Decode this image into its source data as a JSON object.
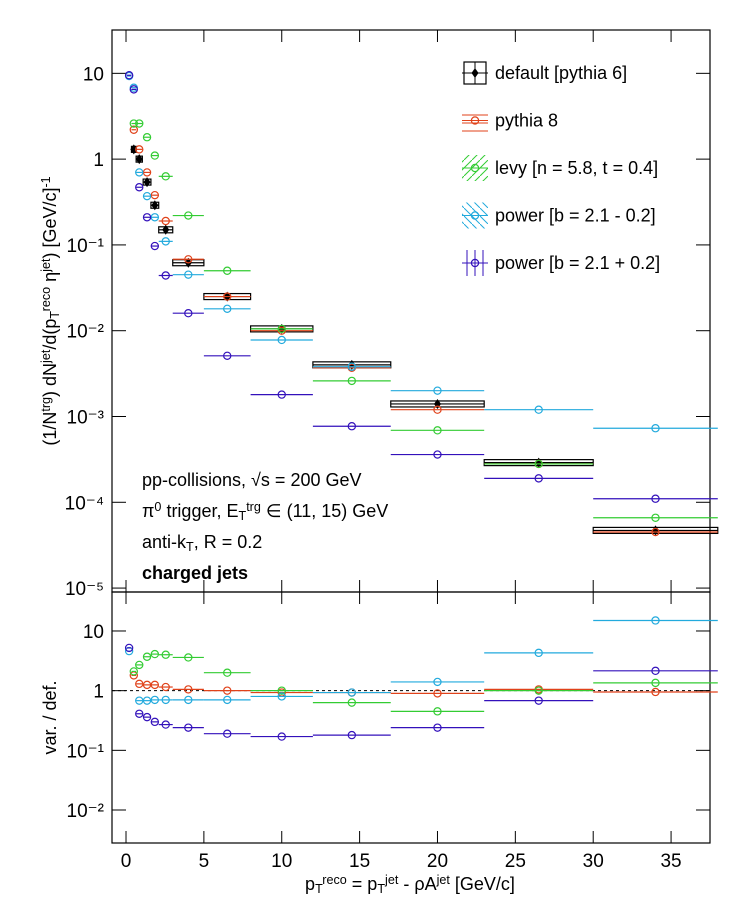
{
  "chart_data": [
    {
      "type": "scatter",
      "log_y": true,
      "ylabel": [
        {
          "t": "(1/N"
        },
        {
          "t": "trg",
          "pos": "sup"
        },
        {
          "t": ") dN"
        },
        {
          "t": "jet",
          "pos": "sup"
        },
        {
          "t": "/d(p"
        },
        {
          "t": "T",
          "pos": "sub"
        },
        {
          "t": "reco",
          "pos": "sup"
        },
        {
          "t": " η"
        },
        {
          "t": "jet",
          "pos": "sup"
        },
        {
          "t": ") [GeV/c]"
        },
        {
          "t": "-1",
          "pos": "sup"
        }
      ],
      "ylim": [
        9e-06,
        32
      ],
      "yticks": [
        {
          "value": 1e-05,
          "label": "10⁻⁵"
        },
        {
          "value": 0.0001,
          "label": "10⁻⁴"
        },
        {
          "value": 0.001,
          "label": "10⁻³"
        },
        {
          "value": 0.01,
          "label": "10⁻²"
        },
        {
          "value": 0.1,
          "label": "10⁻¹"
        },
        1,
        10
      ],
      "x": [
        0.2,
        0.5,
        0.85,
        1.35,
        1.85,
        2.55,
        4,
        6.5,
        10,
        14.5,
        20,
        26.5,
        34
      ],
      "xerr": [
        0.15,
        0.15,
        0.2,
        0.25,
        0.25,
        0.45,
        1,
        1.5,
        2,
        2.5,
        3,
        3.5,
        4
      ],
      "legend": "top-right",
      "series": [
        {
          "name": "default [pythia 6]",
          "color": "#000000",
          "marker": "diamond",
          "box": "outline",
          "values": [
            null,
            1.3,
            1.0,
            0.54,
            0.29,
            0.15,
            0.062,
            0.025,
            0.0105,
            0.004,
            0.0014,
            0.00029,
            4.7e-05
          ]
        },
        {
          "name": "pythia 8",
          "color": "#e0421a",
          "marker": "circle",
          "hatch": "horizontal",
          "values": [
            null,
            2.2,
            1.3,
            0.7,
            0.38,
            0.19,
            0.068,
            0.025,
            0.01,
            0.0037,
            0.0012,
            0.00028,
            4.5e-05
          ]
        },
        {
          "name": "levy [n = 5.8, t = 0.4]",
          "color": "#33cc33",
          "marker": "circle",
          "hatch": "diagonal-up",
          "values": [
            null,
            2.6,
            2.6,
            1.8,
            1.1,
            0.63,
            0.22,
            0.05,
            0.0105,
            0.0026,
            0.00069,
            0.00028,
            6.6e-05
          ]
        },
        {
          "name": "power [b = 2.1 - 0.2]",
          "color": "#22aadd",
          "marker": "circle",
          "hatch": "diagonal-down",
          "values": [
            9.3,
            6.8,
            0.7,
            0.37,
            0.21,
            0.11,
            0.045,
            0.018,
            0.0078,
            0.0038,
            0.002,
            0.0012,
            0.00073
          ]
        },
        {
          "name": "power [b = 2.1 + 0.2]",
          "color": "#3311bb",
          "marker": "circle",
          "hatch": "vertical",
          "values": [
            9.5,
            6.5,
            0.47,
            0.21,
            0.097,
            0.044,
            0.016,
            0.0051,
            0.0018,
            0.00077,
            0.00036,
            0.00019,
            0.00011
          ]
        }
      ],
      "annotations": [
        [
          {
            "t": "pp-collisions, √s = 200 GeV"
          }
        ],
        [
          {
            "t": "π"
          },
          {
            "t": "0",
            "pos": "sup"
          },
          {
            "t": " trigger, E"
          },
          {
            "t": "T",
            "pos": "sub"
          },
          {
            "t": "trg",
            "pos": "sup"
          },
          {
            "t": " ∈ (11, 15) GeV"
          }
        ],
        [
          {
            "t": "anti-k"
          },
          {
            "t": "T",
            "pos": "sub"
          },
          {
            "t": ", R = 0.2"
          }
        ],
        [
          {
            "t": "charged jets",
            "weight": "bold"
          }
        ]
      ]
    },
    {
      "type": "scatter",
      "log_y": true,
      "ylabel": [
        {
          "t": "var. / def."
        }
      ],
      "xlabel": [
        {
          "t": "p"
        },
        {
          "t": "T",
          "pos": "sub"
        },
        {
          "t": "reco",
          "pos": "sup"
        },
        {
          "t": " = p"
        },
        {
          "t": "T",
          "pos": "sub"
        },
        {
          "t": "jet",
          "pos": "sup"
        },
        {
          "t": " - ρA"
        },
        {
          "t": "jet",
          "pos": "sup"
        },
        {
          "t": " [GeV/c]"
        }
      ],
      "xlim": [
        -0.9,
        37.5
      ],
      "xticks": [
        0,
        5,
        10,
        15,
        20,
        25,
        30,
        35
      ],
      "ylim": [
        0.0028,
        45
      ],
      "yticks": [
        {
          "value": 0.01,
          "label": "10⁻²"
        },
        {
          "value": 0.1,
          "label": "10⁻¹"
        },
        1,
        10
      ],
      "reference": 1,
      "x": [
        0.2,
        0.5,
        0.85,
        1.35,
        1.85,
        2.55,
        4,
        6.5,
        10,
        14.5,
        20,
        26.5,
        34
      ],
      "xerr": [
        0.15,
        0.15,
        0.2,
        0.25,
        0.25,
        0.45,
        1,
        1.5,
        2,
        2.5,
        3,
        3.5,
        4
      ],
      "series": [
        {
          "color": "#e0421a",
          "marker": "circle",
          "values": [
            null,
            1.8,
            1.3,
            1.25,
            1.25,
            1.15,
            1.05,
            1,
            0.93,
            0.93,
            0.9,
            1.05,
            0.95
          ]
        },
        {
          "color": "#33cc33",
          "marker": "circle",
          "values": [
            null,
            2.1,
            2.7,
            3.7,
            4.1,
            4.0,
            3.6,
            2.0,
            1.0,
            0.63,
            0.45,
            1.0,
            1.35
          ]
        },
        {
          "color": "#22aadd",
          "marker": "circle",
          "values": [
            4.6,
            null,
            0.68,
            0.68,
            0.7,
            0.7,
            0.7,
            0.7,
            0.8,
            0.93,
            1.4,
            4.3,
            15
          ]
        },
        {
          "color": "#3311bb",
          "marker": "circle",
          "values": [
            5.2,
            null,
            0.41,
            0.36,
            0.3,
            0.27,
            0.24,
            0.19,
            0.17,
            0.18,
            0.24,
            0.68,
            2.15
          ]
        }
      ]
    }
  ]
}
